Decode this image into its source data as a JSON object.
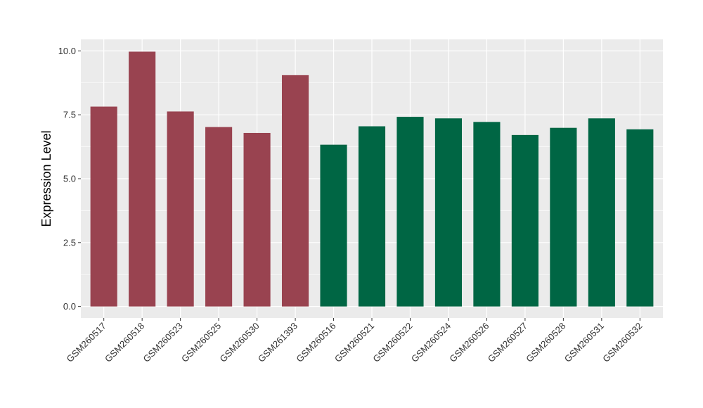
{
  "chart_data": {
    "type": "bar",
    "title": "",
    "xlabel": "",
    "ylabel": "Expression Level",
    "ylim": [
      -0.45,
      10.45
    ],
    "yticks": [
      "0.0",
      "2.5",
      "5.0",
      "7.5",
      "10.0"
    ],
    "grid": true,
    "categories": [
      "GSM260517",
      "GSM260518",
      "GSM260523",
      "GSM260525",
      "GSM260530",
      "GSM261393",
      "GSM260516",
      "GSM260521",
      "GSM260522",
      "GSM260524",
      "GSM260526",
      "GSM260527",
      "GSM260528",
      "GSM260531",
      "GSM260532"
    ],
    "values": [
      7.82,
      9.97,
      7.63,
      7.02,
      6.79,
      9.05,
      6.33,
      7.05,
      7.42,
      7.36,
      7.22,
      6.71,
      6.99,
      7.36,
      6.93
    ],
    "bar_groups": [
      0,
      0,
      0,
      0,
      0,
      0,
      1,
      1,
      1,
      1,
      1,
      1,
      1,
      1,
      1
    ],
    "group_colors": [
      "#994350",
      "#006644"
    ],
    "panel_color": "#EBEBEB",
    "grid_color": "#FFFFFF"
  }
}
